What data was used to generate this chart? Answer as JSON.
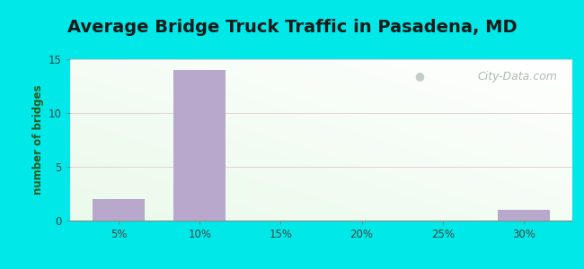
{
  "title": "Average Bridge Truck Traffic in Pasadena, MD",
  "ylabel": "number of bridges",
  "xlabel": "",
  "x_positions": [
    5,
    10,
    15,
    20,
    25,
    30
  ],
  "values": [
    2,
    14,
    0,
    0,
    0,
    1
  ],
  "bar_color": "#b8a8cc",
  "bar_width": 3.2,
  "ylim": [
    0,
    15
  ],
  "yticks": [
    0,
    5,
    10,
    15
  ],
  "xticks": [
    5,
    10,
    15,
    20,
    25,
    30
  ],
  "outer_bg": "#00e8e8",
  "title_fontsize": 14,
  "axis_label_color": "#2d5a1b",
  "tick_label_color": "#444444",
  "grid_color": "#ddcccc",
  "watermark_text": "City-Data.com",
  "watermark_color": "#a0b0a8"
}
